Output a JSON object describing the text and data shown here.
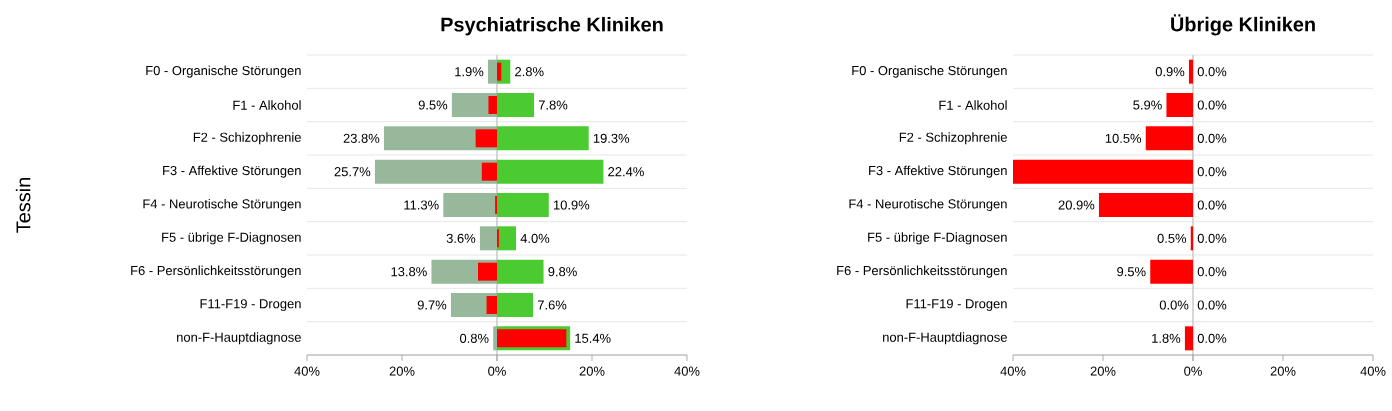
{
  "chart_data": [
    {
      "type": "bar",
      "orientation": "horizontal",
      "ylabel": "Tessin",
      "categories": [
        "F0 - Organische Störungen",
        "F1 - Alkohol",
        "F2 - Schizophrenie",
        "F3 - Affektive Störungen",
        "F4 - Neurotische Störungen",
        "F5 - übrige F-Diagnosen",
        "F6 - Persönlichkeitsstörungen",
        "F11-F19 - Drogen",
        "non-F-Hauptdiagnose"
      ],
      "series": [
        {
          "color": "#97b89b",
          "values": [
            1.9,
            9.5,
            23.8,
            25.7,
            11.3,
            3.6,
            13.8,
            9.7,
            0.8
          ],
          "value_labels": [
            "1.9%",
            "9.5%",
            "23.8%",
            "25.7%",
            "11.3%",
            "3.6%",
            "13.8%",
            "9.7%",
            "0.8%"
          ]
        },
        {
          "color": "#ff0000",
          "values": [
            0,
            1.8,
            4.5,
            3.2,
            0.4,
            0,
            4.0,
            2.2,
            0
          ]
        }
      ],
      "xlim": [
        40,
        0
      ],
      "xticks": [
        {
          "value": 40,
          "label": "40%"
        },
        {
          "value": 20,
          "label": "20%"
        },
        {
          "value": 0,
          "label": "0%"
        }
      ],
      "grid": "y"
    },
    {
      "type": "bar",
      "orientation": "horizontal",
      "title": "Psychiatrische Kliniken",
      "categories": [
        null,
        null,
        null,
        null,
        null,
        null,
        null,
        null,
        null
      ],
      "series": [
        {
          "color": "#4cca32",
          "values": [
            2.8,
            7.8,
            19.3,
            22.4,
            10.9,
            4.0,
            9.8,
            7.6,
            15.4
          ],
          "value_labels": [
            "2.8%",
            "7.8%",
            "19.3%",
            "22.4%",
            "10.9%",
            "4.0%",
            "9.8%",
            "7.6%",
            "15.4%"
          ]
        },
        {
          "color": "#ff0000",
          "values": [
            0.9,
            0,
            0,
            0,
            0,
            0.4,
            0,
            0,
            14.6
          ]
        }
      ],
      "xlim": [
        0,
        40
      ],
      "xticks": [
        {
          "value": 0,
          "label": null
        },
        {
          "value": 20,
          "label": "20%"
        },
        {
          "value": 40,
          "label": "40%"
        }
      ],
      "grid": "y",
      "tick_labels": "x"
    },
    {
      "type": "bar",
      "orientation": "horizontal",
      "categories": [
        "F0 - Organische Störungen",
        "F1 - Alkohol",
        "F2 - Schizophrenie",
        "F3 - Affektive Störungen",
        "F4 - Neurotische Störungen",
        "F5 - übrige F-Diagnosen",
        "F6 - Persönlichkeitsstörungen",
        "F11-F19 - Drogen",
        "non-F-Hauptdiagnose"
      ],
      "series": [
        {
          "color": "#ff0000",
          "values": [
            0.9,
            5.9,
            10.5,
            40,
            20.9,
            0.5,
            9.5,
            0,
            1.8
          ],
          "value_labels": [
            "0.9%",
            "5.9%",
            "10.5%",
            null,
            "20.9%",
            "0.5%",
            "9.5%",
            "0.0%",
            "1.8%"
          ]
        }
      ],
      "xlim": [
        40,
        0
      ],
      "xticks": [
        {
          "value": 40,
          "label": "40%"
        },
        {
          "value": 20,
          "label": "20%"
        },
        {
          "value": 0,
          "label": "0%"
        }
      ],
      "grid": "y"
    },
    {
      "type": "bar",
      "orientation": "horizontal",
      "title": "Übrige Kliniken",
      "categories": [
        null,
        null,
        null,
        null,
        null,
        null,
        null,
        null,
        null
      ],
      "series": [
        {
          "color": "#4cca32",
          "values": [
            0,
            0,
            0,
            0,
            0,
            0,
            0,
            0,
            0
          ],
          "value_labels": [
            "0.0%",
            "0.0%",
            "0.0%",
            "0.0%",
            "0.0%",
            "0.0%",
            "0.0%",
            "0.0%",
            "0.0%"
          ]
        }
      ],
      "xlim": [
        0,
        40
      ],
      "xticks": [
        {
          "value": 0,
          "label": null
        },
        {
          "value": 20,
          "label": "20%"
        },
        {
          "value": 40,
          "label": "40%"
        }
      ],
      "grid": "y",
      "tick_labels": "x"
    }
  ]
}
